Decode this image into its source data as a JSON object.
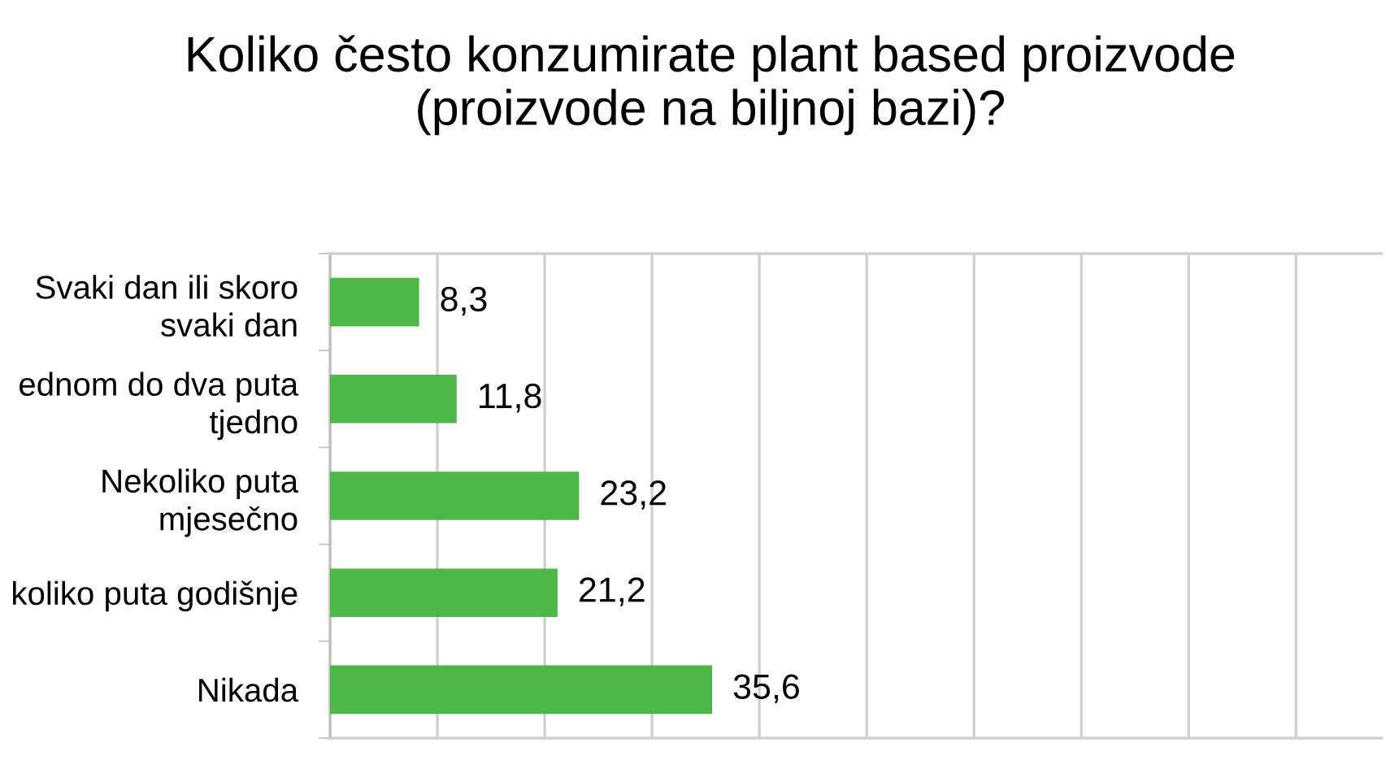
{
  "chart_data": {
    "type": "bar",
    "orientation": "horizontal",
    "title": "Koliko često konzumirate plant based proizvode\n(proizvode na biljnoj bazi)?",
    "categories": [
      "Svaki dan ili skoro\nsvaki dan",
      "ednom do dva puta\ntjedno",
      "Nekoliko puta\nmjesečno",
      "koliko puta godišnje",
      "Nikada"
    ],
    "values": [
      8.3,
      11.8,
      23.2,
      21.2,
      35.6
    ],
    "value_labels": [
      "8,3",
      "11,8",
      "23,2",
      "21,2",
      "35,6"
    ],
    "color": "#4db848",
    "xlim": [
      0,
      98
    ],
    "xticks": [
      {
        "value": 0,
        "label": null
      },
      {
        "value": 10,
        "label": null
      },
      {
        "value": 20,
        "label": null
      },
      {
        "value": 30,
        "label": null
      },
      {
        "value": 40,
        "label": null
      },
      {
        "value": 50,
        "label": null
      },
      {
        "value": 60,
        "label": null
      },
      {
        "value": 70,
        "label": null
      },
      {
        "value": 80,
        "label": null
      },
      {
        "value": 90,
        "label": null
      }
    ],
    "grid": "x",
    "tick_labels": "y"
  }
}
